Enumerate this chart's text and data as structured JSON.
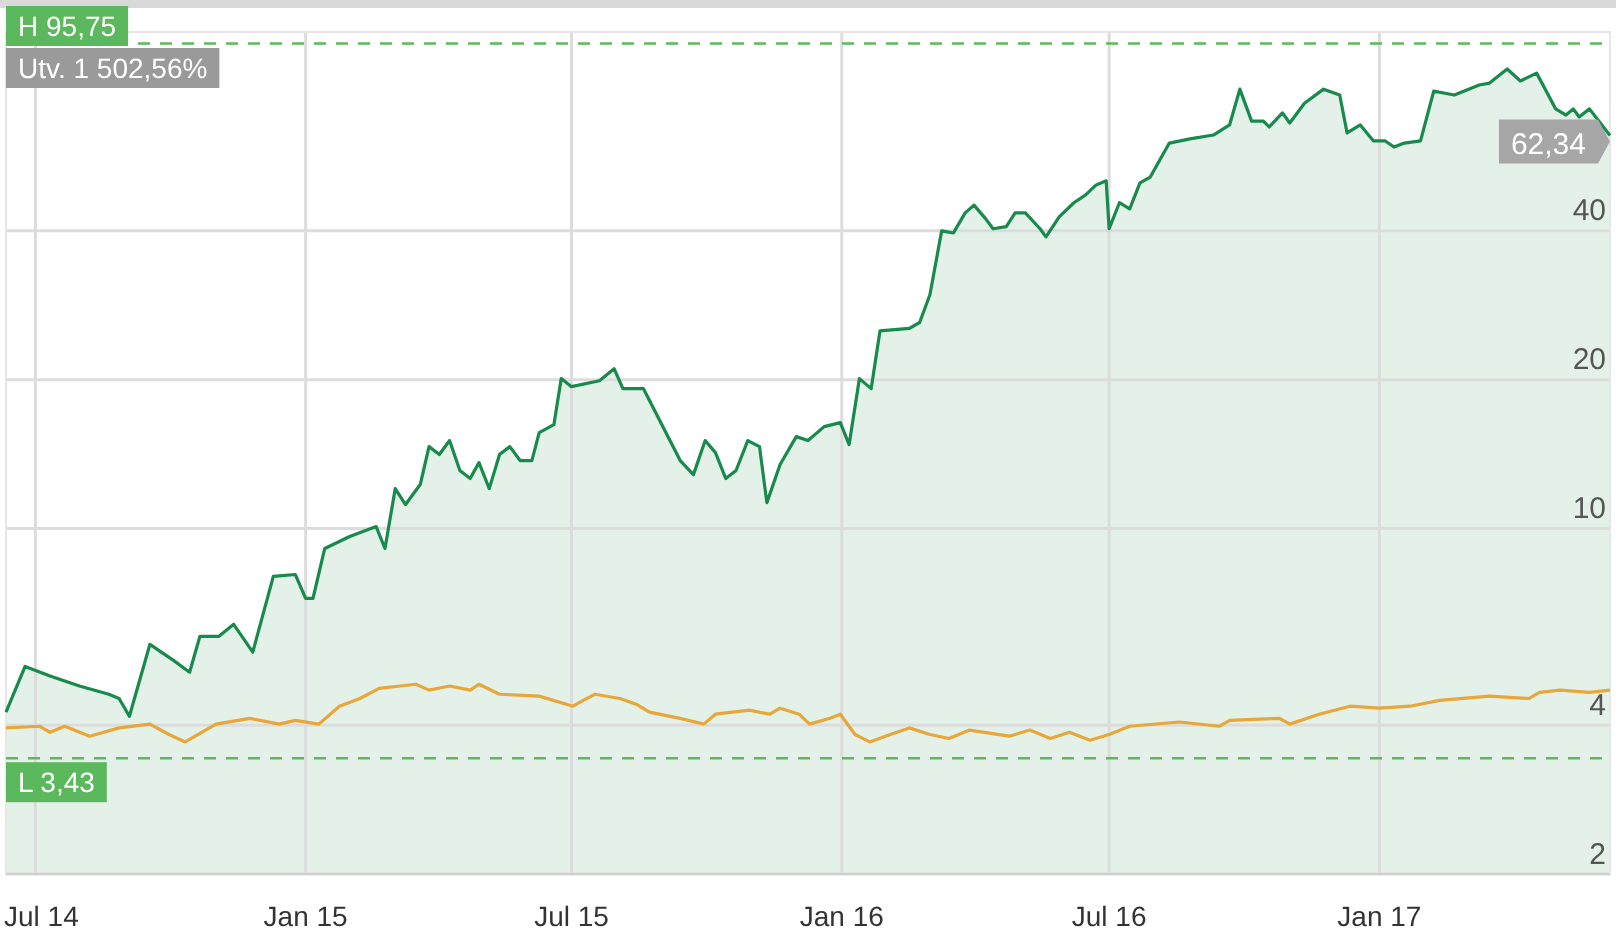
{
  "chart_data": {
    "type": "line",
    "xlim": [
      "2014-06-11",
      "2017-06-07"
    ],
    "xticks": [
      {
        "value": "2014-07-01",
        "label": "Jul 14"
      },
      {
        "value": "2015-01-01",
        "label": "Jan 15"
      },
      {
        "value": "2015-07-01",
        "label": "Jul 15"
      },
      {
        "value": "2016-01-01",
        "label": "Jan 16"
      },
      {
        "value": "2016-07-01",
        "label": "Jul 16"
      },
      {
        "value": "2017-01-01",
        "label": "Jan 17"
      }
    ],
    "ylim": [
      2,
      101
    ],
    "yticks": [
      2,
      4,
      10,
      20,
      40
    ],
    "log": true,
    "grid": true,
    "series": [
      {
        "type": "area",
        "color": "#178a4c",
        "x": [
          "2014-06-11",
          "2014-06-24",
          "2014-07-11",
          "2014-07-31",
          "2014-08-20",
          "2014-08-27",
          "2014-09-03",
          "2014-09-17",
          "2014-10-03",
          "2014-10-14",
          "2014-10-21",
          "2014-11-03",
          "2014-11-13",
          "2014-11-26",
          "2014-12-10",
          "2014-12-25",
          "2015-01-01",
          "2015-01-06",
          "2015-01-14",
          "2015-01-31",
          "2015-02-18",
          "2015-02-24",
          "2015-03-03",
          "2015-03-10",
          "2015-03-20",
          "2015-03-26",
          "2015-04-02",
          "2015-04-09",
          "2015-04-16",
          "2015-04-23",
          "2015-04-29",
          "2015-05-06",
          "2015-05-13",
          "2015-05-20",
          "2015-05-27",
          "2015-06-04",
          "2015-06-09",
          "2015-06-19",
          "2015-06-24",
          "2015-07-01",
          "2015-07-20",
          "2015-07-30",
          "2015-08-05",
          "2015-08-19",
          "2015-09-13",
          "2015-09-22",
          "2015-09-30",
          "2015-10-07",
          "2015-10-14",
          "2015-10-21",
          "2015-10-29",
          "2015-11-06",
          "2015-11-11",
          "2015-11-20",
          "2015-12-01",
          "2015-12-09",
          "2015-12-20",
          "2015-12-31",
          "2016-01-06",
          "2016-01-13",
          "2016-01-21",
          "2016-01-27",
          "2016-02-16",
          "2016-02-23",
          "2016-03-01",
          "2016-03-09",
          "2016-03-17",
          "2016-03-25",
          "2016-03-31",
          "2016-04-08",
          "2016-04-13",
          "2016-04-22",
          "2016-04-28",
          "2016-05-05",
          "2016-05-15",
          "2016-05-19",
          "2016-05-28",
          "2016-06-07",
          "2016-06-15",
          "2016-06-22",
          "2016-06-29",
          "2016-07-01",
          "2016-07-08",
          "2016-07-15",
          "2016-07-22",
          "2016-07-29",
          "2016-08-11",
          "2016-08-25",
          "2016-09-10",
          "2016-09-21",
          "2016-09-28",
          "2016-10-06",
          "2016-10-14",
          "2016-10-18",
          "2016-10-27",
          "2016-11-01",
          "2016-11-11",
          "2016-11-24",
          "2016-12-05",
          "2016-12-10",
          "2016-12-19",
          "2016-12-28",
          "2017-01-05",
          "2017-01-11",
          "2017-01-18",
          "2017-01-29",
          "2017-02-07",
          "2017-02-21",
          "2017-03-10",
          "2017-03-17",
          "2017-03-29",
          "2017-04-07",
          "2017-04-18",
          "2017-05-01",
          "2017-05-08",
          "2017-05-13",
          "2017-05-17",
          "2017-05-24",
          "2017-06-07"
        ],
        "values": [
          4.25,
          5.26,
          5.03,
          4.8,
          4.62,
          4.53,
          4.17,
          5.83,
          5.41,
          5.12,
          6.05,
          6.05,
          6.4,
          5.62,
          8.0,
          8.07,
          7.22,
          7.22,
          9.11,
          9.63,
          10.09,
          9.11,
          12.04,
          11.18,
          12.27,
          14.64,
          14.11,
          15.06,
          13.1,
          12.62,
          13.59,
          12.04,
          14.11,
          14.64,
          13.72,
          13.72,
          15.63,
          16.22,
          20.1,
          19.36,
          19.9,
          21.05,
          19.18,
          19.18,
          13.72,
          12.85,
          15.06,
          14.24,
          12.62,
          13.1,
          15.06,
          14.64,
          11.28,
          13.47,
          15.34,
          15.06,
          16.07,
          16.37,
          14.78,
          20.1,
          19.18,
          25.1,
          25.4,
          26.1,
          29.7,
          40.0,
          39.6,
          43.5,
          45.1,
          42.3,
          40.4,
          40.8,
          43.5,
          43.5,
          40.4,
          38.9,
          42.7,
          45.6,
          47.3,
          49.5,
          50.5,
          40.4,
          45.6,
          44.3,
          50.0,
          51.4,
          60.2,
          61.4,
          62.5,
          65.5,
          77.4,
          66.7,
          66.7,
          64.9,
          69.3,
          66.1,
          72.5,
          77.4,
          75.3,
          63.1,
          65.5,
          60.8,
          60.8,
          59.1,
          60.2,
          60.8,
          76.7,
          75.3,
          78.9,
          79.6,
          85.0,
          80.4,
          83.4,
          70.6,
          68.6,
          70.6,
          68.0,
          70.6,
          62.34
        ]
      },
      {
        "color": "#e8a73a",
        "x": [
          "2014-06-11",
          "2014-07-04",
          "2014-07-11",
          "2014-07-21",
          "2014-08-07",
          "2014-08-27",
          "2014-09-17",
          "2014-09-30",
          "2014-10-11",
          "2014-11-01",
          "2014-11-24",
          "2014-12-14",
          "2014-12-25",
          "2015-01-10",
          "2015-01-24",
          "2015-02-07",
          "2015-02-20",
          "2015-03-17",
          "2015-03-26",
          "2015-04-09",
          "2015-04-23",
          "2015-04-29",
          "2015-05-13",
          "2015-06-09",
          "2015-07-02",
          "2015-07-09",
          "2015-07-17",
          "2015-08-03",
          "2015-08-14",
          "2015-08-23",
          "2015-09-13",
          "2015-09-29",
          "2015-10-07",
          "2015-10-30",
          "2015-11-13",
          "2015-11-20",
          "2015-12-03",
          "2015-12-10",
          "2015-12-24",
          "2015-12-31",
          "2016-01-10",
          "2016-01-20",
          "2016-02-03",
          "2016-02-16",
          "2016-03-01",
          "2016-03-14",
          "2016-03-28",
          "2016-04-24",
          "2016-05-08",
          "2016-05-22",
          "2016-06-04",
          "2016-06-18",
          "2016-07-01",
          "2016-07-15",
          "2016-08-18",
          "2016-09-14",
          "2016-09-21",
          "2016-10-25",
          "2016-11-01",
          "2016-11-21",
          "2016-12-12",
          "2017-01-01",
          "2017-01-22",
          "2017-02-11",
          "2017-03-17",
          "2017-04-13",
          "2017-04-20",
          "2017-05-04",
          "2017-05-24",
          "2017-06-07"
        ],
        "values": [
          3.95,
          3.98,
          3.87,
          3.98,
          3.8,
          3.95,
          4.02,
          3.83,
          3.7,
          4.02,
          4.13,
          4.02,
          4.09,
          4.02,
          4.37,
          4.53,
          4.75,
          4.84,
          4.71,
          4.8,
          4.71,
          4.84,
          4.62,
          4.58,
          4.37,
          4.49,
          4.62,
          4.53,
          4.41,
          4.25,
          4.13,
          4.02,
          4.21,
          4.29,
          4.21,
          4.33,
          4.21,
          4.02,
          4.13,
          4.21,
          3.83,
          3.7,
          3.83,
          3.95,
          3.83,
          3.76,
          3.91,
          3.8,
          3.91,
          3.76,
          3.87,
          3.73,
          3.83,
          3.98,
          4.06,
          3.98,
          4.09,
          4.13,
          4.02,
          4.21,
          4.37,
          4.33,
          4.37,
          4.49,
          4.58,
          4.53,
          4.66,
          4.71,
          4.66,
          4.71
        ]
      }
    ],
    "ref_lines": [
      {
        "axis": "y",
        "value": 95.75,
        "label": "H 95,75",
        "color": "#5cb85c",
        "line_style": "dashed"
      },
      {
        "axis": "y",
        "value": 3.43,
        "label": "L 3,43",
        "color": "#5cb85c",
        "line_style": "dashed"
      }
    ],
    "annotations": [
      "Utv. 1 502,56%",
      {
        "text": "62,34",
        "x": "2017-06-07",
        "y": 62.34
      }
    ]
  }
}
